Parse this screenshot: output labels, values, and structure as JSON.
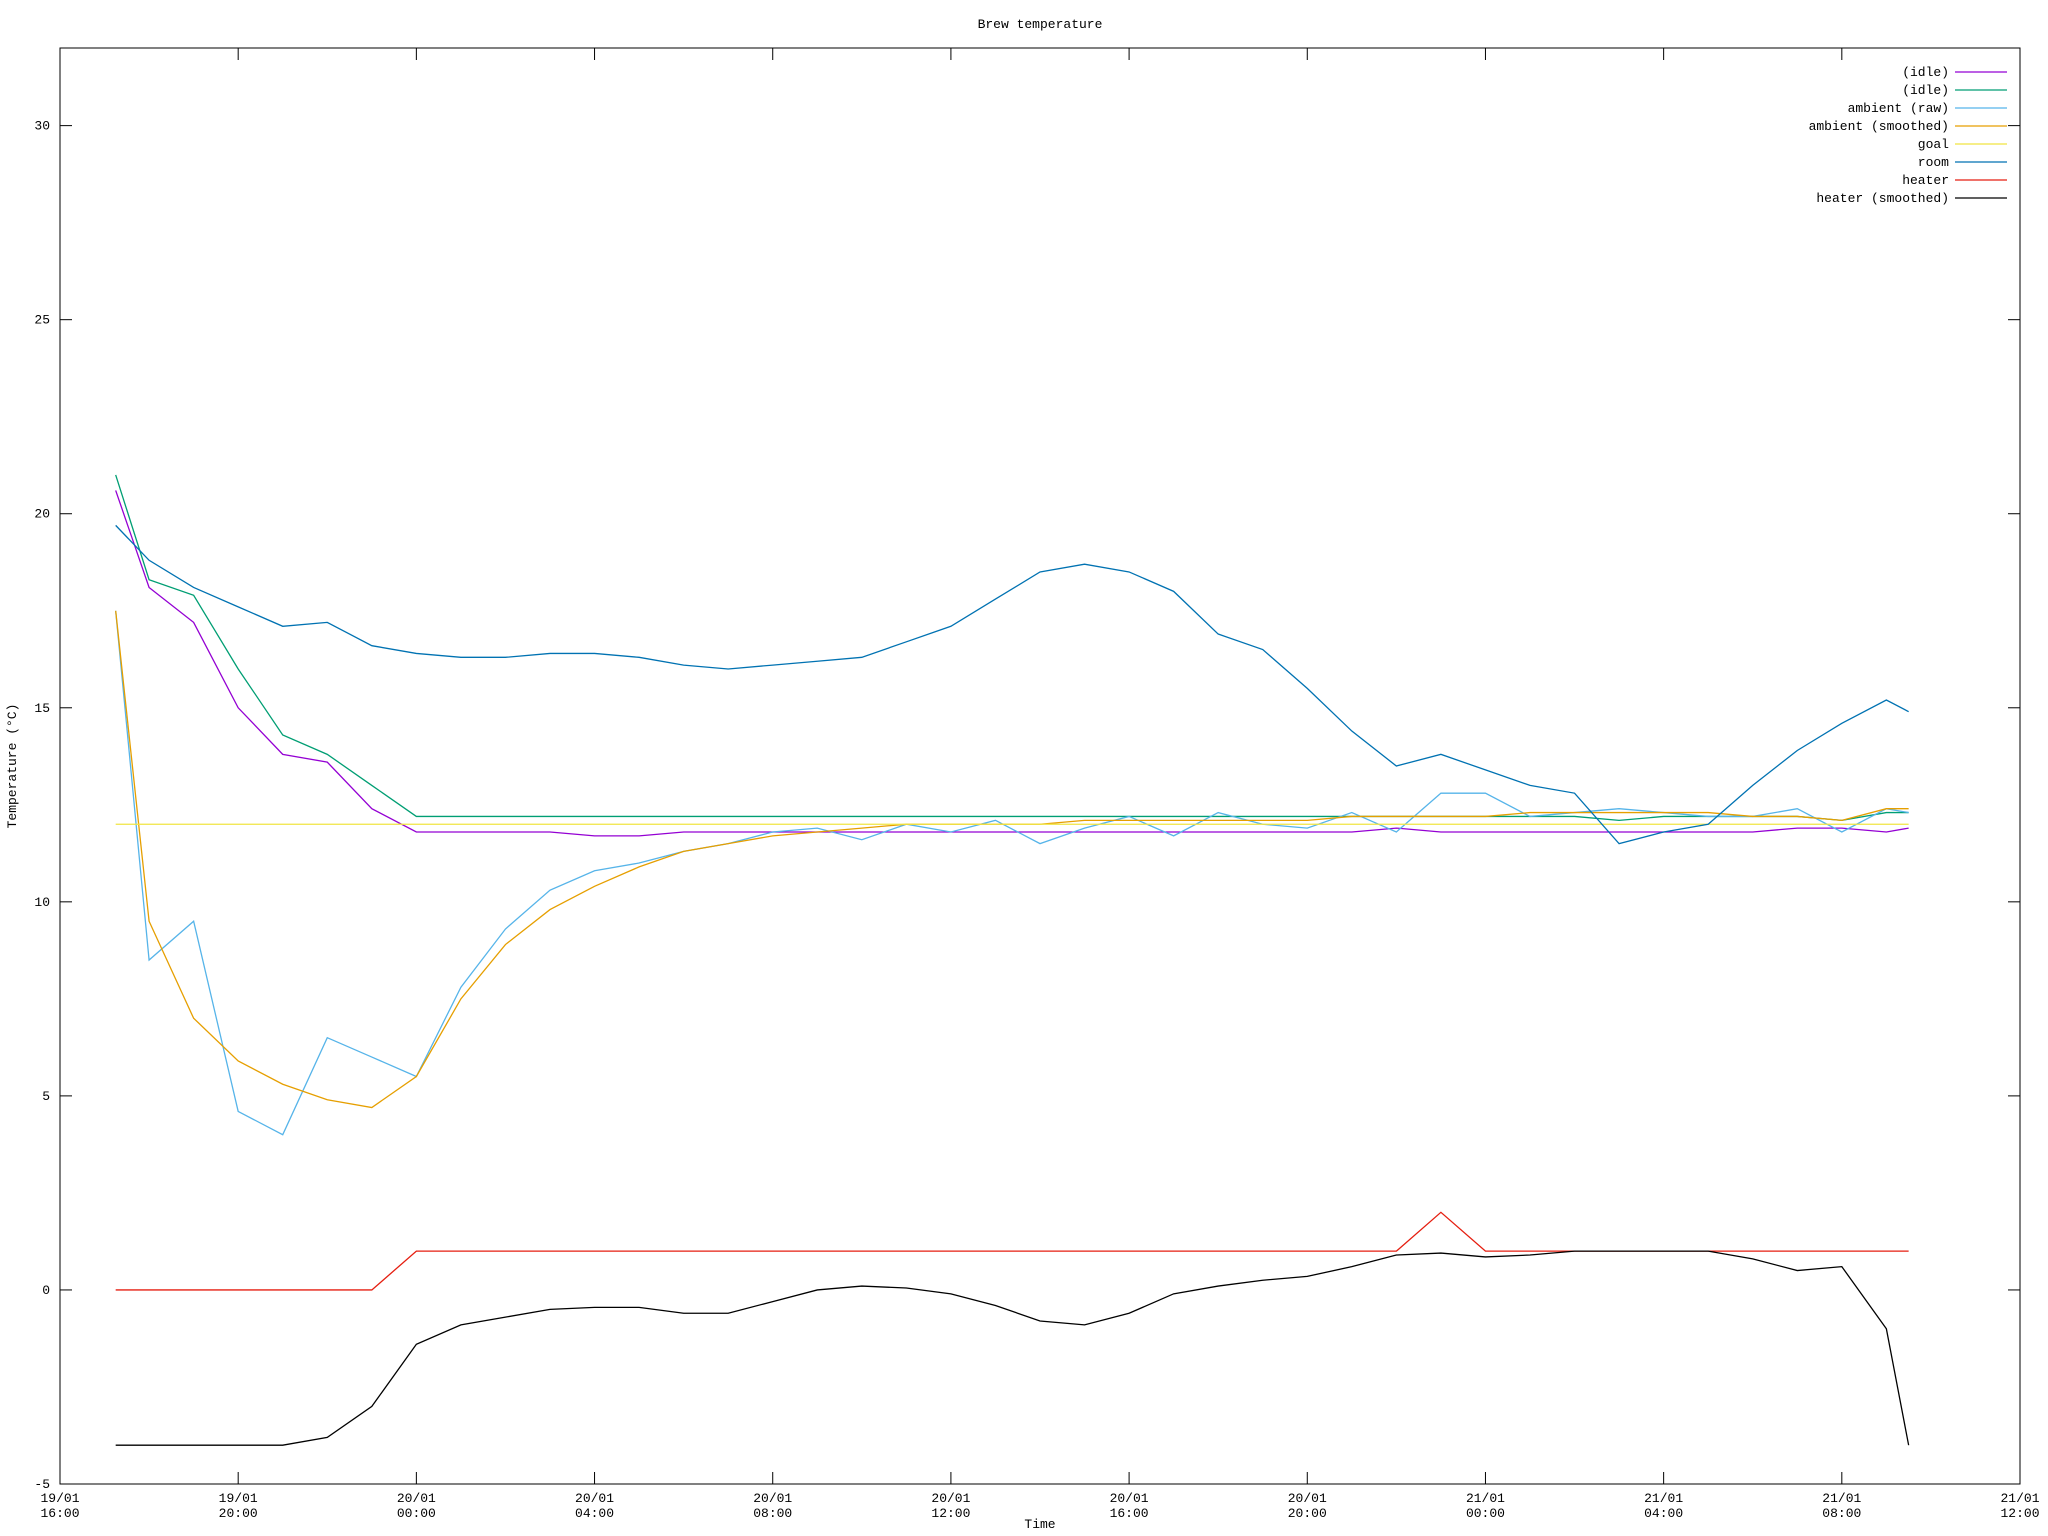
{
  "chart_data": {
    "type": "line",
    "title": "Brew temperature",
    "x_label": "Time",
    "y_label": "Temperature (°C)",
    "x": [
      "19/01 17:15",
      "19/01 18:00",
      "19/01 19:00",
      "19/01 20:00",
      "19/01 21:00",
      "19/01 22:00",
      "19/01 23:00",
      "20/01 00:00",
      "20/01 01:00",
      "20/01 02:00",
      "20/01 03:00",
      "20/01 04:00",
      "20/01 05:00",
      "20/01 06:00",
      "20/01 07:00",
      "20/01 08:00",
      "20/01 09:00",
      "20/01 10:00",
      "20/01 11:00",
      "20/01 12:00",
      "20/01 13:00",
      "20/01 14:00",
      "20/01 15:00",
      "20/01 16:00",
      "20/01 17:00",
      "20/01 18:00",
      "20/01 19:00",
      "20/01 20:00",
      "20/01 21:00",
      "20/01 22:00",
      "20/01 23:00",
      "21/01 00:00",
      "21/01 01:00",
      "21/01 02:00",
      "21/01 03:00",
      "21/01 04:00",
      "21/01 05:00",
      "21/01 06:00",
      "21/01 07:00",
      "21/01 08:00",
      "21/01 09:00",
      "21/01 09:30"
    ],
    "series": [
      {
        "name": "(idle)",
        "color": "#9400d3",
        "values": [
          20.6,
          18.1,
          17.2,
          15.0,
          13.8,
          13.6,
          12.4,
          11.8,
          11.8,
          11.8,
          11.8,
          11.7,
          11.7,
          11.8,
          11.8,
          11.8,
          11.8,
          11.8,
          11.8,
          11.8,
          11.8,
          11.8,
          11.8,
          11.8,
          11.8,
          11.8,
          11.8,
          11.8,
          11.8,
          11.9,
          11.8,
          11.8,
          11.8,
          11.8,
          11.8,
          11.8,
          11.8,
          11.8,
          11.9,
          11.9,
          11.8,
          11.9
        ]
      },
      {
        "name": "(idle)",
        "color": "#009e73",
        "values": [
          21.0,
          18.3,
          17.9,
          16.0,
          14.3,
          13.8,
          13.0,
          12.2,
          12.2,
          12.2,
          12.2,
          12.2,
          12.2,
          12.2,
          12.2,
          12.2,
          12.2,
          12.2,
          12.2,
          12.2,
          12.2,
          12.2,
          12.2,
          12.2,
          12.2,
          12.2,
          12.2,
          12.2,
          12.2,
          12.2,
          12.2,
          12.2,
          12.2,
          12.2,
          12.1,
          12.2,
          12.2,
          12.2,
          12.2,
          12.1,
          12.3,
          12.3
        ]
      },
      {
        "name": "ambient (raw)",
        "color": "#56b4e9",
        "values": [
          17.5,
          8.5,
          9.5,
          4.6,
          4.0,
          6.5,
          6.0,
          5.5,
          7.8,
          9.3,
          10.3,
          10.8,
          11.0,
          11.3,
          11.5,
          11.8,
          11.9,
          11.6,
          12.0,
          11.8,
          12.1,
          11.5,
          11.9,
          12.2,
          11.7,
          12.3,
          12.0,
          11.9,
          12.3,
          11.8,
          12.8,
          12.8,
          12.2,
          12.3,
          12.4,
          12.3,
          12.2,
          12.2,
          12.4,
          11.8,
          12.4,
          12.3
        ]
      },
      {
        "name": "ambient (smoothed)",
        "color": "#e69f00",
        "values": [
          17.5,
          9.5,
          7.0,
          5.9,
          5.3,
          4.9,
          4.7,
          5.5,
          7.5,
          8.9,
          9.8,
          10.4,
          10.9,
          11.3,
          11.5,
          11.7,
          11.8,
          11.9,
          12.0,
          12.0,
          12.0,
          12.0,
          12.1,
          12.1,
          12.1,
          12.1,
          12.1,
          12.1,
          12.2,
          12.2,
          12.2,
          12.2,
          12.3,
          12.3,
          12.3,
          12.3,
          12.3,
          12.2,
          12.2,
          12.1,
          12.4,
          12.4
        ]
      },
      {
        "name": "goal",
        "color": "#f0e442",
        "values": [
          12,
          12,
          12,
          12,
          12,
          12,
          12,
          12,
          12,
          12,
          12,
          12,
          12,
          12,
          12,
          12,
          12,
          12,
          12,
          12,
          12,
          12,
          12,
          12,
          12,
          12,
          12,
          12,
          12,
          12,
          12,
          12,
          12,
          12,
          12,
          12,
          12,
          12,
          12,
          12,
          12,
          12
        ]
      },
      {
        "name": "room",
        "color": "#0072b2",
        "values": [
          19.7,
          18.8,
          18.1,
          17.6,
          17.1,
          17.2,
          16.6,
          16.4,
          16.3,
          16.3,
          16.4,
          16.4,
          16.3,
          16.1,
          16.0,
          16.1,
          16.2,
          16.3,
          16.7,
          17.1,
          17.8,
          18.5,
          18.7,
          18.5,
          18.0,
          16.9,
          16.5,
          15.5,
          14.4,
          13.5,
          13.8,
          13.4,
          13.0,
          12.8,
          11.5,
          11.8,
          12.0,
          13.0,
          13.9,
          14.6,
          15.2,
          14.9
        ]
      },
      {
        "name": "heater",
        "color": "#e51e10",
        "values": [
          0,
          0,
          0,
          0,
          0,
          0,
          0,
          1,
          1,
          1,
          1,
          1,
          1,
          1,
          1,
          1,
          1,
          1,
          1,
          1,
          1,
          1,
          1,
          1,
          1,
          1,
          1,
          1,
          1,
          1,
          2,
          1,
          1,
          1,
          1,
          1,
          1,
          1,
          1,
          1,
          1,
          1
        ]
      },
      {
        "name": "heater (smoothed)",
        "color": "#000000",
        "values": [
          -4,
          -4,
          -4,
          -4,
          -4,
          -3.8,
          -3.0,
          -1.4,
          -0.9,
          -0.7,
          -0.5,
          -0.45,
          -0.45,
          -0.6,
          -0.6,
          -0.3,
          0.0,
          0.1,
          0.05,
          -0.1,
          -0.4,
          -0.8,
          -0.9,
          -0.6,
          -0.1,
          0.1,
          0.25,
          0.35,
          0.6,
          0.9,
          0.95,
          0.85,
          0.9,
          1.0,
          1.0,
          1.0,
          1.0,
          0.8,
          0.5,
          0.6,
          -1.0,
          -4.0
        ]
      }
    ],
    "xlim": [
      "19/01 16:00",
      "21/01 12:00"
    ],
    "xticks": [
      {
        "value": "19/01 16:00",
        "label": [
          "19/01",
          "16:00"
        ]
      },
      {
        "value": "19/01 20:00",
        "label": [
          "19/01",
          "20:00"
        ]
      },
      {
        "value": "20/01 00:00",
        "label": [
          "20/01",
          "00:00"
        ]
      },
      {
        "value": "20/01 04:00",
        "label": [
          "20/01",
          "04:00"
        ]
      },
      {
        "value": "20/01 08:00",
        "label": [
          "20/01",
          "08:00"
        ]
      },
      {
        "value": "20/01 12:00",
        "label": [
          "20/01",
          "12:00"
        ]
      },
      {
        "value": "20/01 16:00",
        "label": [
          "20/01",
          "16:00"
        ]
      },
      {
        "value": "20/01 20:00",
        "label": [
          "20/01",
          "20:00"
        ]
      },
      {
        "value": "21/01 00:00",
        "label": [
          "21/01",
          "00:00"
        ]
      },
      {
        "value": "21/01 04:00",
        "label": [
          "21/01",
          "04:00"
        ]
      },
      {
        "value": "21/01 08:00",
        "label": [
          "21/01",
          "08:00"
        ]
      },
      {
        "value": "21/01 12:00",
        "label": [
          "21/01",
          "12:00"
        ]
      }
    ],
    "ylim": [
      -5,
      32
    ],
    "yticks": [
      -5,
      0,
      5,
      10,
      15,
      20,
      25,
      30
    ],
    "legend": "top-right",
    "grid": false
  }
}
